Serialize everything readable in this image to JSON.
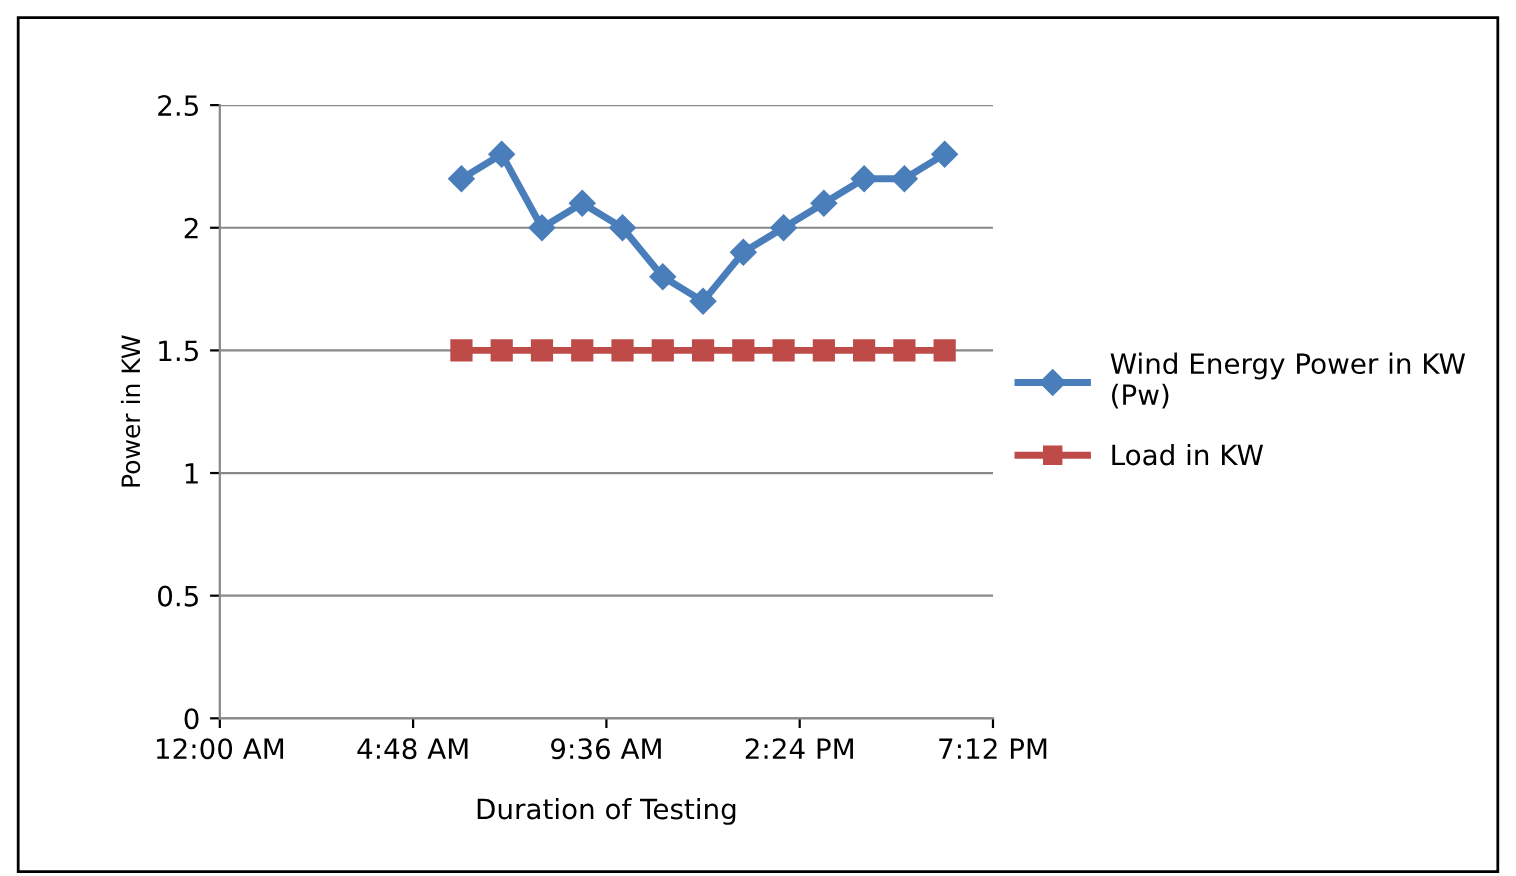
{
  "chart_data": {
    "type": "line",
    "xlabel": "Duration of Testing",
    "ylabel": "Power in KW",
    "xlim": [
      0,
      19.2
    ],
    "xticks": [
      {
        "value": 0,
        "label": "12:00 AM"
      },
      {
        "value": 4.8,
        "label": "4:48 AM"
      },
      {
        "value": 9.6,
        "label": "9:36 AM"
      },
      {
        "value": 14.4,
        "label": "2:24 PM"
      },
      {
        "value": 19.2,
        "label": "7:12 PM"
      }
    ],
    "ylim": [
      0,
      2.5
    ],
    "yticks": [
      0,
      0.5,
      1,
      1.5,
      2,
      2.5
    ],
    "grid": "y",
    "legend": "right",
    "x": [
      6,
      7,
      8,
      9,
      10,
      11,
      12,
      13,
      14,
      15,
      16,
      17,
      18
    ],
    "series": [
      {
        "name": "Wind Energy Power in KW (Pw)",
        "color": "#4a7ebb",
        "marker": "diamond",
        "values": [
          2.2,
          2.3,
          2.0,
          2.1,
          2.0,
          1.8,
          1.7,
          1.9,
          2.0,
          2.1,
          2.2,
          2.2,
          2.3
        ]
      },
      {
        "name": "Load in KW",
        "color": "#be4b48",
        "marker": "square",
        "values": [
          1.5,
          1.5,
          1.5,
          1.5,
          1.5,
          1.5,
          1.5,
          1.5,
          1.5,
          1.5,
          1.5,
          1.5,
          1.5
        ]
      }
    ]
  }
}
